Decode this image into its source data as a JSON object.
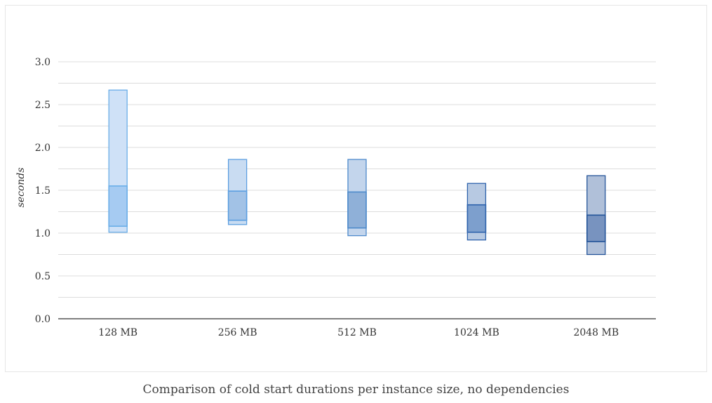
{
  "caption": "Comparison of cold start durations per instance size, no dependencies",
  "chart_data": {
    "type": "box",
    "title": "",
    "xlabel": "",
    "ylabel": "seconds",
    "ylim": [
      0,
      3.0
    ],
    "yticks": [
      "0.0",
      "0.5",
      "1.0",
      "1.5",
      "2.0",
      "2.5",
      "3.0"
    ],
    "grid": true,
    "categories": [
      "128 MB",
      "256 MB",
      "512 MB",
      "1024 MB",
      "2048 MB"
    ],
    "boxes": [
      {
        "min": 1.01,
        "q1": 1.08,
        "q3": 1.55,
        "max": 2.67
      },
      {
        "min": 1.1,
        "q1": 1.15,
        "q3": 1.49,
        "max": 1.86
      },
      {
        "min": 0.97,
        "q1": 1.06,
        "q3": 1.48,
        "max": 1.86
      },
      {
        "min": 0.92,
        "q1": 1.01,
        "q3": 1.33,
        "max": 1.58
      },
      {
        "min": 0.75,
        "q1": 0.9,
        "q3": 1.21,
        "max": 1.67
      }
    ],
    "colors": {
      "outer_fill": [
        "#cfe1f7",
        "#c9dcf2",
        "#c3d5ec",
        "#b7c9e2",
        "#b0c0d9"
      ],
      "inner_fill": [
        "#a6cbf2",
        "#a2c2e6",
        "#8fb0d8",
        "#7d9fcd",
        "#7893bf"
      ],
      "stroke": [
        "#6aaee8",
        "#5b9ee0",
        "#4d8acb",
        "#2f63ad",
        "#25559a"
      ]
    }
  }
}
